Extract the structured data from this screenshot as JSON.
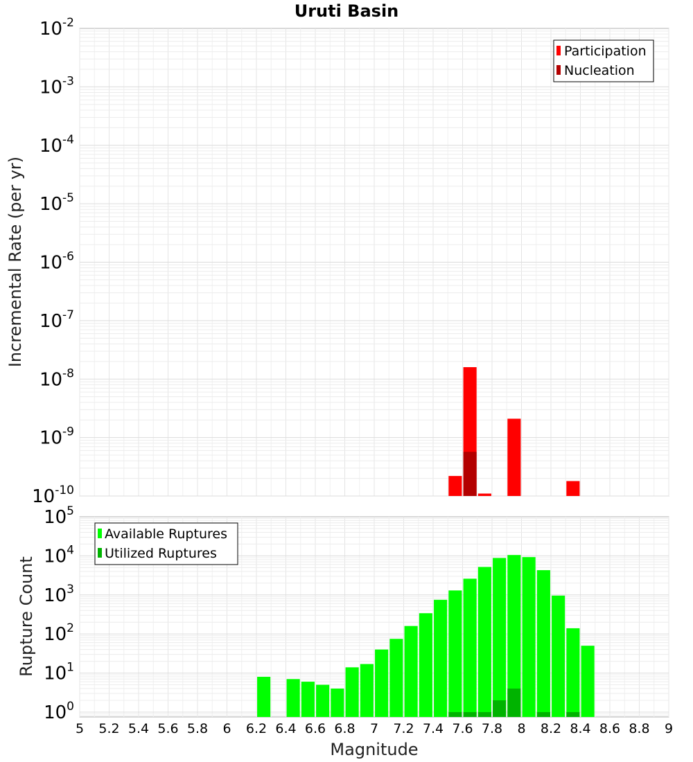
{
  "chart_data": [
    {
      "type": "bar",
      "title": "Uruti Basin",
      "ylabel": "Incremental Rate (per yr)",
      "yscale": "log",
      "ylim": [
        1e-10,
        0.01
      ],
      "xlim": [
        5,
        9
      ],
      "yticks": [
        {
          "base": "10",
          "exp": "-2"
        },
        {
          "base": "10",
          "exp": "-3"
        },
        {
          "base": "10",
          "exp": "-4"
        },
        {
          "base": "10",
          "exp": "-5"
        },
        {
          "base": "10",
          "exp": "-6"
        },
        {
          "base": "10",
          "exp": "-7"
        },
        {
          "base": "10",
          "exp": "-8"
        },
        {
          "base": "10",
          "exp": "-9"
        },
        {
          "base": "10",
          "exp": "-10"
        }
      ],
      "legend_position": "top-right",
      "series": [
        {
          "name": "Participation",
          "color": "#ff0000",
          "points": [
            [
              7.55,
              2.2e-10
            ],
            [
              7.65,
              1.6e-08
            ],
            [
              7.75,
              1.1e-10
            ],
            [
              7.95,
              2.1e-09
            ],
            [
              8.35,
              1.8e-10
            ]
          ]
        },
        {
          "name": "Nucleation",
          "color": "#b30000",
          "points": [
            [
              7.65,
              5.7e-10
            ]
          ]
        }
      ]
    },
    {
      "type": "bar",
      "ylabel": "Rupture Count",
      "xlabel": "Magnitude",
      "yscale": "log",
      "ylim": [
        0.75,
        100000.0
      ],
      "xlim": [
        5,
        9
      ],
      "yticks": [
        {
          "base": "10",
          "exp": "5"
        },
        {
          "base": "10",
          "exp": "4"
        },
        {
          "base": "10",
          "exp": "3"
        },
        {
          "base": "10",
          "exp": "2"
        },
        {
          "base": "10",
          "exp": "1"
        },
        {
          "base": "10",
          "exp": "0"
        }
      ],
      "xticks": [
        "5",
        "5.2",
        "5.4",
        "5.6",
        "5.8",
        "6",
        "6.2",
        "6.4",
        "6.6",
        "6.8",
        "7",
        "7.2",
        "7.4",
        "7.6",
        "7.8",
        "8",
        "8.2",
        "8.4",
        "8.6",
        "8.8",
        "9"
      ],
      "legend_position": "top-left",
      "series": [
        {
          "name": "Available Ruptures",
          "color": "#00ff00",
          "points": [
            [
              6.25,
              8
            ],
            [
              6.45,
              7
            ],
            [
              6.55,
              6
            ],
            [
              6.65,
              5
            ],
            [
              6.75,
              4
            ],
            [
              6.85,
              14
            ],
            [
              6.95,
              17
            ],
            [
              7.05,
              40
            ],
            [
              7.15,
              75
            ],
            [
              7.25,
              160
            ],
            [
              7.35,
              340
            ],
            [
              7.45,
              750
            ],
            [
              7.55,
              1300
            ],
            [
              7.65,
              2600
            ],
            [
              7.75,
              5200
            ],
            [
              7.85,
              8800
            ],
            [
              7.95,
              10500
            ],
            [
              8.05,
              9300
            ],
            [
              8.15,
              4300
            ],
            [
              8.25,
              960
            ],
            [
              8.35,
              140
            ],
            [
              8.45,
              50
            ]
          ]
        },
        {
          "name": "Utilized Ruptures",
          "color": "#00b300",
          "points": [
            [
              7.55,
              1
            ],
            [
              7.65,
              1
            ],
            [
              7.75,
              1
            ],
            [
              7.85,
              2
            ],
            [
              7.95,
              4
            ],
            [
              8.15,
              1
            ],
            [
              8.35,
              1
            ]
          ]
        }
      ]
    }
  ]
}
